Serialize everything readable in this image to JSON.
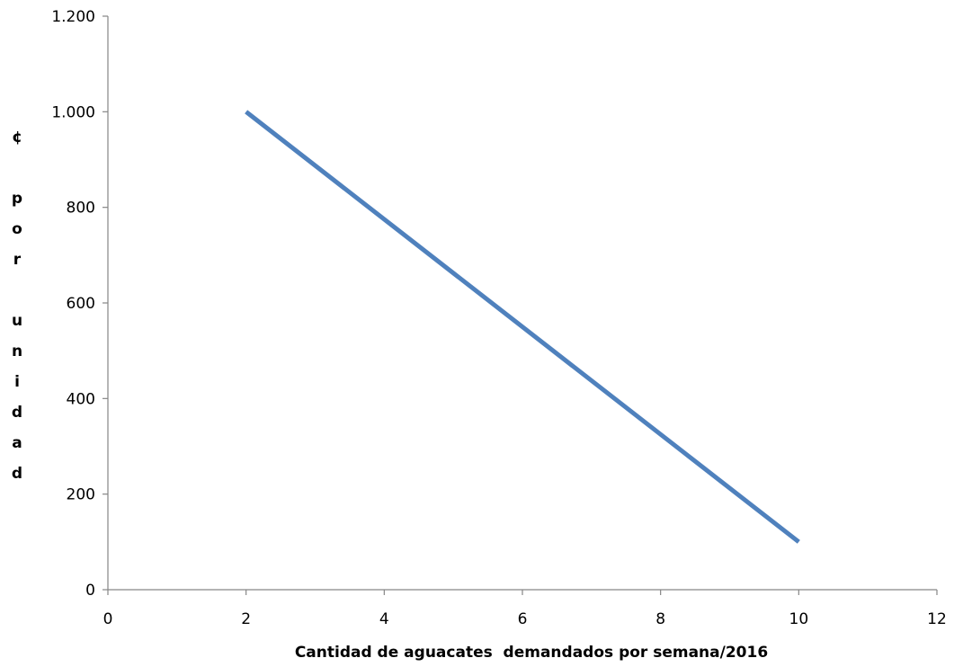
{
  "chart_data": {
    "type": "line",
    "x": [
      2,
      10
    ],
    "series": [
      {
        "values": [
          1000,
          100
        ],
        "color": "#4f81bd"
      }
    ],
    "xlabel": "Cantidad de aguacates  demandados por semana/2016",
    "ylabel": "¢ por unidad",
    "xlim": [
      0,
      12
    ],
    "ylim": [
      0,
      1200
    ],
    "xticks": [
      0,
      2,
      4,
      6,
      8,
      10,
      12
    ],
    "yticks": [
      0,
      200,
      400,
      600,
      800,
      1000,
      1200
    ],
    "xtick_labels": [
      "0",
      "2",
      "4",
      "6",
      "8",
      "10",
      "12"
    ],
    "ytick_labels": [
      "0",
      "200",
      "400",
      "600",
      "800",
      "1.000",
      "1.200"
    ],
    "grid": false,
    "axis_color": "#868686"
  }
}
